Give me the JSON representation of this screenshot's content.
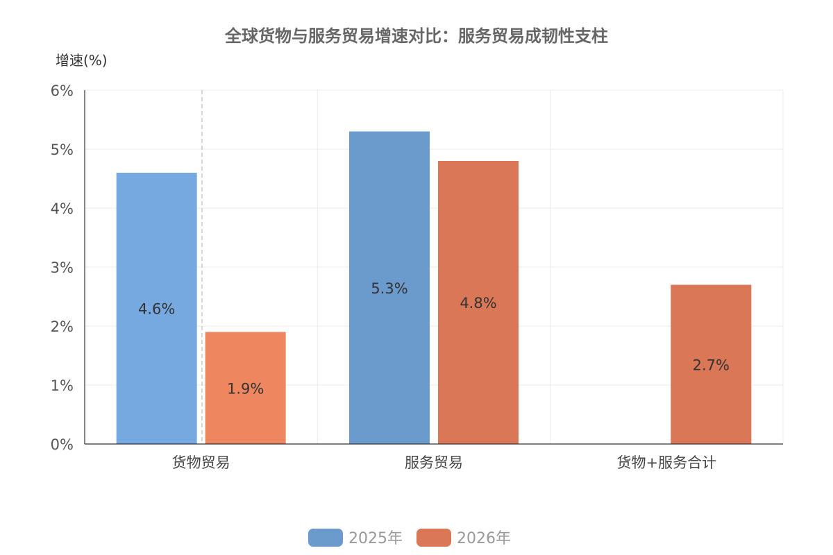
{
  "chart_data": {
    "type": "bar",
    "title": "全球货物与服务贸易增速对比：服务贸易成韧性支柱",
    "ylabel": "增速(%)",
    "xlabel": "",
    "ylim": [
      0,
      6
    ],
    "yticks": [
      "0%",
      "1%",
      "2%",
      "3%",
      "4%",
      "5%",
      "6%"
    ],
    "grid": true,
    "legend": "bottom",
    "categories": [
      "货物贸易",
      "服务贸易",
      "货物+服务合计"
    ],
    "series": [
      {
        "name": "2025年",
        "values": [
          4.6,
          5.3,
          null
        ],
        "labels": [
          "4.6%",
          "5.3%",
          ""
        ],
        "legend_color": "#6a9bcc",
        "bar_colors": [
          "#75a9df",
          "#6a9bcc",
          "#6a9bcc"
        ]
      },
      {
        "name": "2026年",
        "values": [
          1.9,
          4.8,
          2.7
        ],
        "labels": [
          "1.9%",
          "4.8%",
          "2.7%"
        ],
        "legend_color": "#d97756",
        "bar_colors": [
          "#ee8660",
          "#d97756",
          "#d97756"
        ]
      }
    ]
  }
}
